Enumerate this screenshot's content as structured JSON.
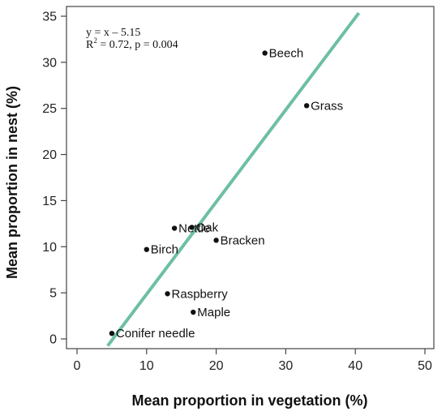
{
  "chart_data": {
    "type": "scatter",
    "xlabel": "Mean proportion in vegetation (%)",
    "ylabel": "Mean proportion in nest (%)",
    "xlim": [
      0,
      50
    ],
    "ylim": [
      0,
      35
    ],
    "xticks": [
      0,
      10,
      20,
      30,
      40,
      50
    ],
    "yticks": [
      0,
      5,
      10,
      15,
      20,
      25,
      30,
      35
    ],
    "grid": false,
    "annotation": {
      "equation": "y = x – 5.15",
      "r2_prefix": "R",
      "r2_sup": "2",
      "r2_rest": " = 0.72, p = 0.004"
    },
    "fit_line": {
      "slope": 1,
      "intercept": -5.15,
      "x_start": 4.4,
      "x_end": 40.5,
      "color": "#6dbfa4"
    },
    "points": [
      {
        "label": "Beech",
        "x": 27.0,
        "y": 31.0
      },
      {
        "label": "Grass",
        "x": 33.0,
        "y": 25.3
      },
      {
        "label": "Oak",
        "x": 16.5,
        "y": 12.1
      },
      {
        "label": "Nettle",
        "x": 14.0,
        "y": 12.0
      },
      {
        "label": "Bracken",
        "x": 20.0,
        "y": 10.7
      },
      {
        "label": "Birch",
        "x": 10.0,
        "y": 9.7
      },
      {
        "label": "Raspberry",
        "x": 13.0,
        "y": 4.9
      },
      {
        "label": "Maple",
        "x": 16.7,
        "y": 2.9
      },
      {
        "label": "Conifer needle",
        "x": 5.0,
        "y": 0.6
      }
    ],
    "point_color": "#111111"
  }
}
